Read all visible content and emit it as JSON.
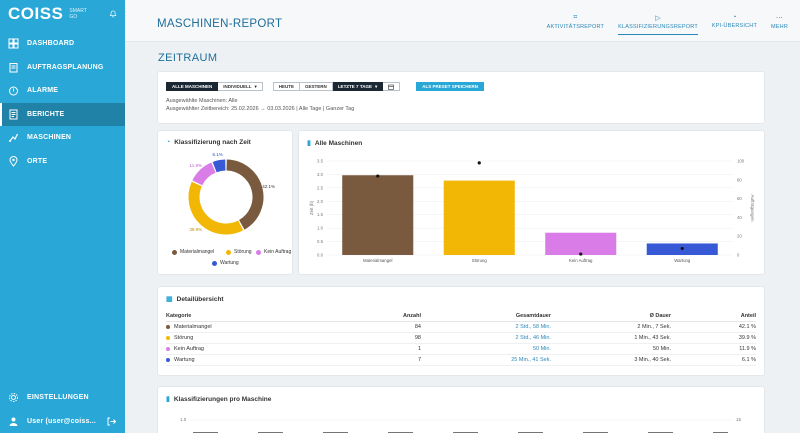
{
  "sidebar": {
    "logo": "COISS",
    "logo_sub_1": "SMART",
    "logo_sub_2": "GO",
    "items": [
      {
        "label": "DASHBOARD",
        "icon": "dashboard-icon"
      },
      {
        "label": "AUFTRAGSPLANUNG",
        "icon": "clipboard-icon"
      },
      {
        "label": "ALARME",
        "icon": "alarm-icon"
      },
      {
        "label": "BERICHTE",
        "icon": "report-icon",
        "active": true
      },
      {
        "label": "MASCHINEN",
        "icon": "machine-icon"
      },
      {
        "label": "ORTE",
        "icon": "location-icon"
      }
    ],
    "settings": "EINSTELLUNGEN",
    "user": "User (user@coiss..."
  },
  "header": {
    "title": "MASCHINEN-REPORT",
    "tabs": [
      {
        "label": "AKTIVITÄTSREPORT",
        "icon": "activity-icon"
      },
      {
        "label": "KLASSIFIZIERUNGSREPORT",
        "icon": "tag-icon",
        "active": true
      },
      {
        "label": "KPI-ÜBERSICHT",
        "icon": "gauge-icon"
      },
      {
        "label": "MEHR",
        "icon": "more-icon"
      }
    ]
  },
  "section_title": "ZEITRAUM",
  "filters": {
    "all_machines": "ALLE MASCHINEN",
    "individual": "INDIVIDUELL",
    "today": "HEUTE",
    "yesterday": "GESTERN",
    "last7": "LETZTE 7 TAGE",
    "save_preset": "ALS PRESET SPEICHERN",
    "selected_machines": "Ausgewählte Maschinen: Alle",
    "selected_range": "Ausgewählter Zeitbereich: 25.02.2026 → 03.03.2026 | Alle Tage | Ganzer Tag"
  },
  "donut": {
    "title": "Klassifizierung nach Zeit",
    "labels": [
      "42.1%",
      "39.9%",
      "11.9%",
      "6.1%"
    ]
  },
  "bars": {
    "title": "Alle Maschinen",
    "ylabel_left": "Zeit (h)",
    "ylabel_right": "Aufträgungen"
  },
  "legend": [
    {
      "label": "Materialmangel",
      "color": "#7a5a3e"
    },
    {
      "label": "Störung",
      "color": "#f2b705"
    },
    {
      "label": "Kein Auftrag",
      "color": "#d97ce8"
    },
    {
      "label": "Wartung",
      "color": "#3759d6"
    }
  ],
  "table": {
    "title": "Detailübersicht",
    "headers": [
      "Kategorie",
      "Anzahl",
      "Gesamtdauer",
      "Ø Dauer",
      "Anteil"
    ],
    "rows": [
      {
        "cat": "Materialmangel",
        "count": "84",
        "total": "2 Std., 58 Min.",
        "avg": "2 Min., 7 Sek.",
        "share": "42.1 %"
      },
      {
        "cat": "Störung",
        "count": "98",
        "total": "2 Std., 46 Min.",
        "avg": "1 Min., 43 Sek.",
        "share": "39.9 %"
      },
      {
        "cat": "Kein Auftrag",
        "count": "1",
        "total": "50 Min.",
        "avg": "50 Min.",
        "share": "11.9 %"
      },
      {
        "cat": "Wartung",
        "count": "7",
        "total": "25 Min., 41 Sek.",
        "avg": "3 Min., 40 Sek.",
        "share": "6.1 %"
      }
    ]
  },
  "bottom": {
    "title": "Klassifizierungen pro Maschine",
    "y_left_tick": "1.0",
    "y_right_tick": "15"
  },
  "chart_data": [
    {
      "type": "pie",
      "title": "Klassifizierung nach Zeit",
      "categories": [
        "Materialmangel",
        "Störung",
        "Kein Auftrag",
        "Wartung"
      ],
      "values": [
        42.1,
        39.9,
        11.9,
        6.1
      ]
    },
    {
      "type": "bar",
      "title": "Alle Maschinen",
      "categories": [
        "Materialmangel",
        "Störung",
        "Kein Auftrag",
        "Wartung"
      ],
      "series": [
        {
          "name": "Zeit (h)",
          "values": [
            2.97,
            2.77,
            0.83,
            0.43
          ]
        },
        {
          "name": "Aufträgungen",
          "values": [
            84,
            98,
            1,
            7
          ]
        }
      ],
      "ylabel": "Zeit (h)",
      "ylabel_right": "Aufträgungen",
      "ylim": [
        0,
        3.5
      ],
      "ylim_right": [
        0,
        100
      ],
      "yticks": [
        "0.0",
        "0.5",
        "1.0",
        "1.5",
        "2.0",
        "2.5",
        "3.0",
        "3.5"
      ],
      "yticks_right": [
        "0",
        "20",
        "40",
        "60",
        "80",
        "100"
      ]
    }
  ]
}
